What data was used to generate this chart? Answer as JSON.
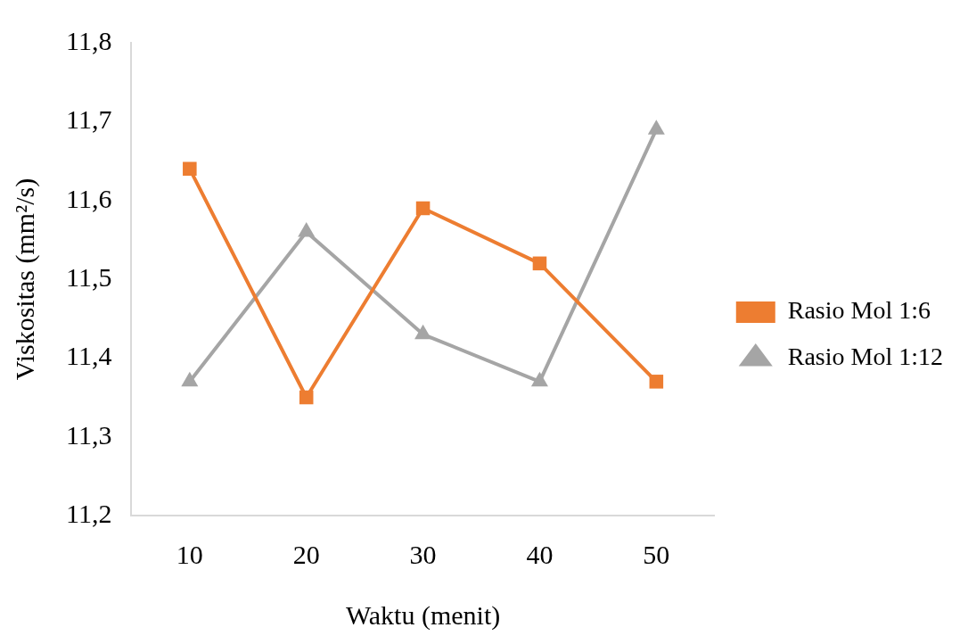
{
  "chart_data": {
    "type": "line",
    "xlabel": "Waktu (menit)",
    "ylabel": "Viskositas (mm²/s)",
    "categories": [
      "10",
      "20",
      "30",
      "40",
      "50"
    ],
    "series": [
      {
        "name": "Rasio Mol 1:6",
        "color": "#ed7d31",
        "marker": "square",
        "values": [
          11.64,
          11.35,
          11.59,
          11.52,
          11.37
        ]
      },
      {
        "name": "Rasio Mol 1:12",
        "color": "#a5a5a5",
        "marker": "triangle",
        "values": [
          11.37,
          11.56,
          11.43,
          11.37,
          11.69
        ]
      }
    ],
    "ylim": [
      11.2,
      11.8
    ],
    "yticks": [
      {
        "value": 11.2,
        "label": "11,2"
      },
      {
        "value": 11.3,
        "label": "11,3"
      },
      {
        "value": 11.4,
        "label": "11,4"
      },
      {
        "value": 11.5,
        "label": "11,5"
      },
      {
        "value": 11.6,
        "label": "11,6"
      },
      {
        "value": 11.7,
        "label": "11,7"
      },
      {
        "value": 11.8,
        "label": "11,8"
      }
    ],
    "grid": false,
    "legend": "right",
    "line_style": "solid"
  }
}
